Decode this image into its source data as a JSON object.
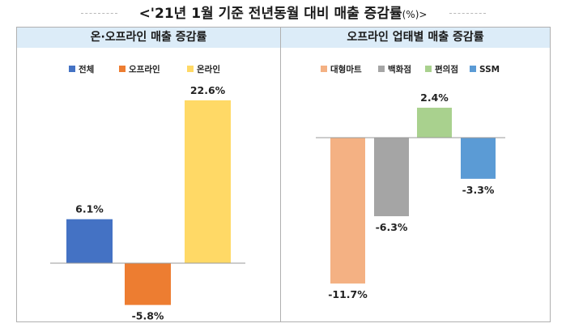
{
  "page": {
    "title": "<'21년 1월 기준 전년동월 대비 매출 증감률",
    "title_unit": "(%)>"
  },
  "chart_data": [
    {
      "type": "bar",
      "title": "온·오프라인 매출 증감률",
      "categories": [
        "전체",
        "오프라인",
        "온라인"
      ],
      "values": [
        6.1,
        -5.8,
        22.6
      ],
      "value_labels": [
        "6.1%",
        "-5.8%",
        "22.6%"
      ],
      "colors": [
        "#4472c4",
        "#ed7d31",
        "#ffd966"
      ],
      "legend_position": "top",
      "grid": false
    },
    {
      "type": "bar",
      "title": "오프라인 업태별 매출 증감률",
      "categories": [
        "대형마트",
        "백화점",
        "편의점",
        "SSM"
      ],
      "values": [
        -11.7,
        -6.3,
        2.4,
        -3.3
      ],
      "value_labels": [
        "-11.7%",
        "-6.3%",
        "2.4%",
        "-3.3%"
      ],
      "colors": [
        "#f4b183",
        "#a5a5a5",
        "#a9d18e",
        "#5b9bd5"
      ],
      "legend_position": "top",
      "grid": false
    }
  ]
}
